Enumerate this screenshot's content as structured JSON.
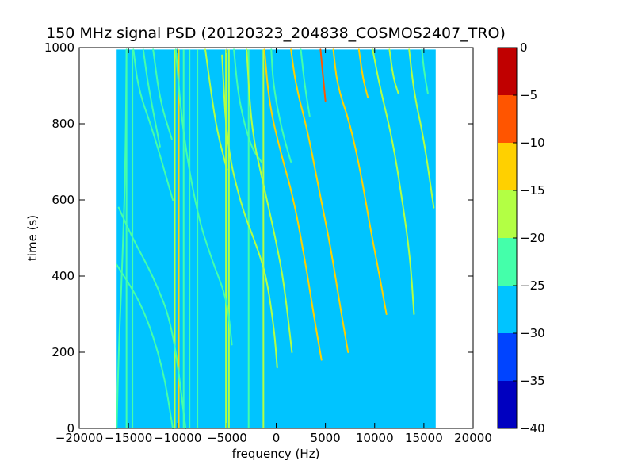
{
  "chart_data": {
    "type": "heatmap",
    "title": "150 MHz signal PSD (20120323_204838_COSMOS2407_TRO)",
    "xlabel": "frequency (Hz)",
    "ylabel": "time (s)",
    "xlim": [
      -20000,
      20000
    ],
    "ylim": [
      0,
      1000
    ],
    "xticks": [
      -20000,
      -15000,
      -10000,
      -5000,
      0,
      5000,
      10000,
      15000,
      20000
    ],
    "xtick_labels": [
      "−20000",
      "−15000",
      "−10000",
      "−5000",
      "0",
      "5000",
      "10000",
      "15000",
      "20000"
    ],
    "yticks": [
      0,
      200,
      400,
      600,
      800,
      1000
    ],
    "ytick_labels": [
      "0",
      "200",
      "400",
      "600",
      "800",
      "1000"
    ],
    "data_extent": {
      "x": [
        -16200,
        16200
      ],
      "y": [
        0,
        995
      ]
    },
    "grid": false,
    "background_level": -27.5,
    "colorbar": {
      "range": [
        -40,
        0
      ],
      "ticks": [
        0,
        -5,
        -10,
        -15,
        -20,
        -25,
        -30,
        -35,
        -40
      ],
      "tick_labels": [
        "0",
        "−5",
        "−10",
        "−15",
        "−20",
        "−25",
        "−30",
        "−35",
        "−40"
      ],
      "bands": [
        {
          "from": -5,
          "to": 0,
          "color": "#c00000"
        },
        {
          "from": -10,
          "to": -5,
          "color": "#ff5500"
        },
        {
          "from": -15,
          "to": -10,
          "color": "#ffd000"
        },
        {
          "from": -20,
          "to": -15,
          "color": "#b3ff44"
        },
        {
          "from": -25,
          "to": -20,
          "color": "#44ffaa"
        },
        {
          "from": -30,
          "to": -25,
          "color": "#00c4ff"
        },
        {
          "from": -35,
          "to": -30,
          "color": "#0044ff"
        },
        {
          "from": -40,
          "to": -35,
          "color": "#0000c0"
        }
      ]
    },
    "vertical_lines": [
      {
        "x": -15200,
        "y": [
          0,
          995
        ],
        "level": -22
      },
      {
        "x": -14600,
        "y": [
          0,
          995
        ],
        "level": -22
      },
      {
        "x": -10300,
        "y": [
          0,
          995
        ],
        "level": -18
      },
      {
        "x": -9900,
        "y": [
          0,
          995
        ],
        "level": -12
      },
      {
        "x": -9400,
        "y": [
          0,
          995
        ],
        "level": -22
      },
      {
        "x": -8800,
        "y": [
          0,
          995
        ],
        "level": -22
      },
      {
        "x": -8000,
        "y": [
          0,
          995
        ],
        "level": -22
      },
      {
        "x": -5100,
        "y": [
          0,
          995
        ],
        "level": -18
      },
      {
        "x": -4800,
        "y": [
          0,
          995
        ],
        "level": -18
      },
      {
        "x": -2800,
        "y": [
          0,
          995
        ],
        "level": -22
      },
      {
        "x": -1300,
        "y": [
          0,
          995
        ],
        "level": -18
      }
    ],
    "tracks": [
      {
        "points": [
          [
            -15200,
            995
          ],
          [
            -15300,
            700
          ],
          [
            -15600,
            450
          ],
          [
            -16000,
            200
          ],
          [
            -16200,
            0
          ]
        ],
        "level": -22
      },
      {
        "points": [
          [
            -16000,
            580
          ],
          [
            -14600,
            500
          ],
          [
            -12500,
            400
          ],
          [
            -10500,
            270
          ],
          [
            -9200,
            0
          ]
        ],
        "level": -22
      },
      {
        "points": [
          [
            -16200,
            430
          ],
          [
            -13500,
            320
          ],
          [
            -11500,
            160
          ],
          [
            -10500,
            0
          ]
        ],
        "level": -22
      },
      {
        "points": [
          [
            -14500,
            995
          ],
          [
            -14000,
            890
          ],
          [
            -12500,
            780
          ],
          [
            -10500,
            600
          ]
        ],
        "level": -22
      },
      {
        "points": [
          [
            -12500,
            995
          ],
          [
            -11800,
            860
          ],
          [
            -10600,
            760
          ]
        ],
        "level": -22
      },
      {
        "points": [
          [
            -10200,
            995
          ],
          [
            -9500,
            780
          ],
          [
            -8000,
            560
          ],
          [
            -6500,
            440
          ],
          [
            -5000,
            340
          ],
          [
            -4500,
            220
          ]
        ],
        "level": -22
      },
      {
        "points": [
          [
            -7200,
            995
          ],
          [
            -6600,
            880
          ],
          [
            -6000,
            780
          ],
          [
            -5000,
            680
          ]
        ],
        "level": -18
      },
      {
        "points": [
          [
            -5500,
            980
          ],
          [
            -5000,
            740
          ],
          [
            -3500,
            580
          ],
          [
            -2000,
            480
          ],
          [
            -1000,
            400
          ],
          [
            -200,
            260
          ],
          [
            100,
            160
          ]
        ],
        "level": -18
      },
      {
        "points": [
          [
            -4300,
            995
          ],
          [
            -3800,
            860
          ],
          [
            -2600,
            740
          ],
          [
            -1500,
            700
          ]
        ],
        "level": -22
      },
      {
        "points": [
          [
            -3000,
            995
          ],
          [
            -2500,
            780
          ],
          [
            -1200,
            630
          ],
          [
            0,
            490
          ],
          [
            800,
            380
          ],
          [
            1600,
            200
          ]
        ],
        "level": -18
      },
      {
        "points": [
          [
            -1200,
            995
          ],
          [
            -700,
            850
          ],
          [
            500,
            720
          ],
          [
            1800,
            600
          ],
          [
            3000,
            430
          ],
          [
            3800,
            300
          ],
          [
            4600,
            180
          ]
        ],
        "level": -12
      },
      {
        "points": [
          [
            -500,
            995
          ],
          [
            -300,
            900
          ],
          [
            600,
            780
          ],
          [
            1500,
            700
          ]
        ],
        "level": -22
      },
      {
        "points": [
          [
            1500,
            995
          ],
          [
            2000,
            900
          ],
          [
            3200,
            780
          ],
          [
            4400,
            620
          ],
          [
            5500,
            480
          ],
          [
            6500,
            320
          ],
          [
            7300,
            200
          ]
        ],
        "level": -12
      },
      {
        "points": [
          [
            4500,
            995
          ],
          [
            4700,
            940
          ],
          [
            5000,
            860
          ]
        ],
        "level": -8
      },
      {
        "points": [
          [
            5800,
            995
          ],
          [
            6200,
            900
          ],
          [
            7500,
            800
          ],
          [
            8600,
            670
          ],
          [
            9600,
            520
          ],
          [
            10500,
            400
          ],
          [
            11200,
            300
          ]
        ],
        "level": -15
      },
      {
        "points": [
          [
            8400,
            995
          ],
          [
            8800,
            920
          ],
          [
            9300,
            870
          ]
        ],
        "level": -15
      },
      {
        "points": [
          [
            9800,
            995
          ],
          [
            10500,
            900
          ],
          [
            11800,
            760
          ],
          [
            12800,
            600
          ],
          [
            13600,
            450
          ],
          [
            14000,
            300
          ]
        ],
        "level": -18
      },
      {
        "points": [
          [
            11500,
            995
          ],
          [
            11900,
            920
          ],
          [
            12400,
            880
          ]
        ],
        "level": -18
      },
      {
        "points": [
          [
            13500,
            995
          ],
          [
            14000,
            880
          ],
          [
            15000,
            760
          ],
          [
            16000,
            580
          ]
        ],
        "level": -18
      },
      {
        "points": [
          [
            14800,
            995
          ],
          [
            15000,
            940
          ],
          [
            15400,
            880
          ]
        ],
        "level": -22
      },
      {
        "points": [
          [
            -13500,
            995
          ],
          [
            -13000,
            900
          ],
          [
            -11800,
            740
          ]
        ],
        "level": -22
      },
      {
        "points": [
          [
            2500,
            995
          ],
          [
            2900,
            900
          ],
          [
            3400,
            820
          ]
        ],
        "level": -22
      }
    ]
  }
}
